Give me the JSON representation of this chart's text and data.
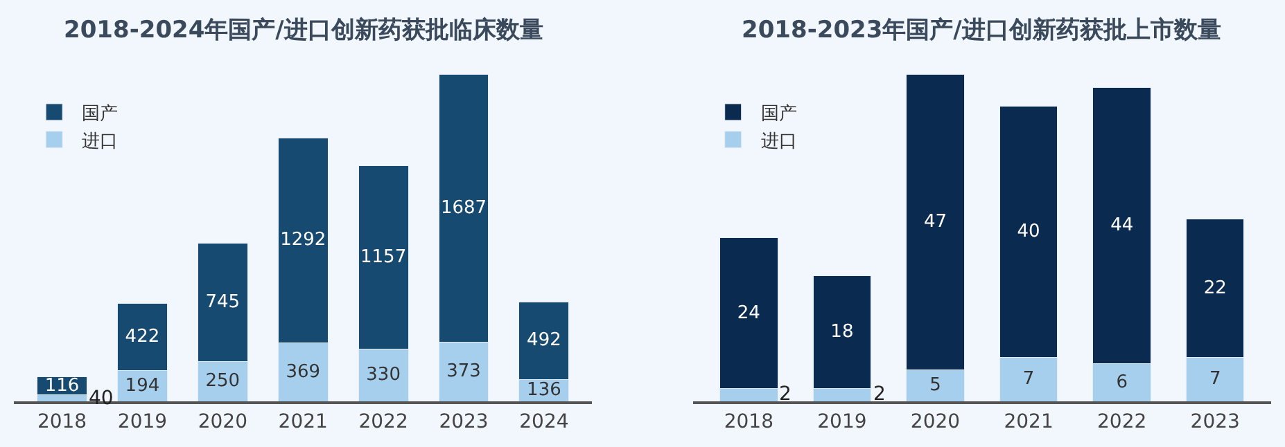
{
  "chart_data": [
    {
      "type": "bar",
      "title": "2018-2024年国产/进口创新药获批临床数量",
      "categories": [
        "2018",
        "2019",
        "2020",
        "2021",
        "2022",
        "2023",
        "2024"
      ],
      "stacked": true,
      "data_labels": true,
      "legend": "top left",
      "series": [
        {
          "name": "国产",
          "color": "#174a70",
          "values": [
            116,
            422,
            745,
            1292,
            1157,
            1687,
            492
          ]
        },
        {
          "name": "进口",
          "color": "#a6cfee",
          "values": [
            40,
            194,
            250,
            369,
            330,
            373,
            136
          ]
        }
      ]
    },
    {
      "type": "bar",
      "title": "2018-2023年国产/进口创新药获批上市数量",
      "categories": [
        "2018",
        "2019",
        "2020",
        "2021",
        "2022",
        "2023"
      ],
      "stacked": true,
      "data_labels": true,
      "legend": "top left",
      "series": [
        {
          "name": "国产",
          "color": "#0b2a50",
          "values": [
            24,
            18,
            47,
            40,
            44,
            22
          ]
        },
        {
          "name": "进口",
          "color": "#a6cfee",
          "values": [
            2,
            2,
            5,
            7,
            6,
            7
          ]
        }
      ]
    }
  ]
}
